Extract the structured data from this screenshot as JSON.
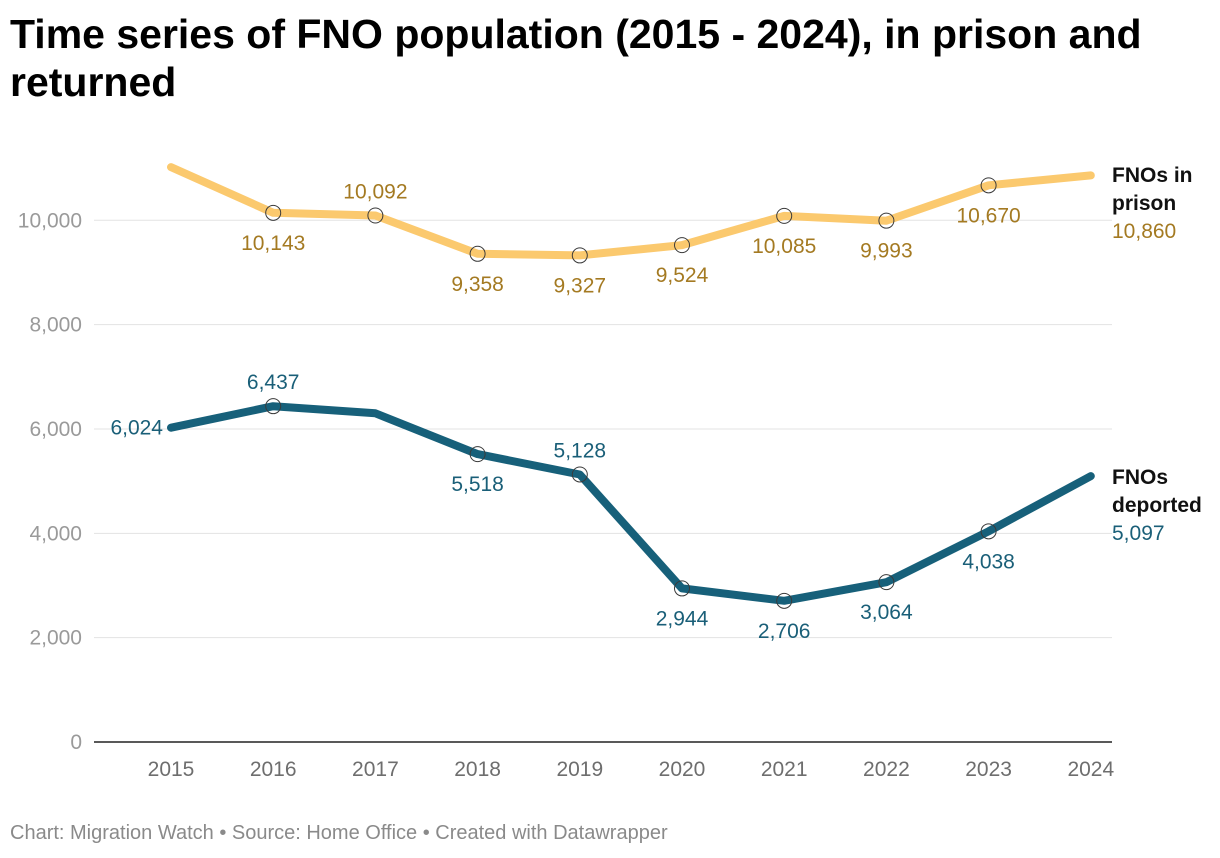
{
  "chart_data": {
    "type": "line",
    "title": "Time series of FNO population (2015 - 2024), in prison and returned",
    "xlabel": "",
    "ylabel": "",
    "x": [
      2015,
      2016,
      2017,
      2018,
      2019,
      2020,
      2021,
      2022,
      2023,
      2024
    ],
    "ylim": [
      0,
      11500
    ],
    "yticks": [
      0,
      2000,
      4000,
      6000,
      8000,
      10000
    ],
    "ytick_labels": [
      "0",
      "2,000",
      "4,000",
      "6,000",
      "8,000",
      "10,000"
    ],
    "grid": true,
    "series": [
      {
        "name": "FNOs in prison",
        "name_lines": [
          "FNOs in",
          "prison"
        ],
        "color": "#fbc96e",
        "label_color": "#a47a22",
        "values": [
          11020,
          10143,
          10092,
          9358,
          9327,
          9524,
          10085,
          9993,
          10670,
          10860
        ],
        "labels": [
          null,
          "10,143",
          "10,092",
          "9,358",
          "9,327",
          "9,524",
          "10,085",
          "9,993",
          "10,670",
          "10,860"
        ],
        "label_pos": [
          null,
          "below",
          "above",
          "below",
          "below",
          "below",
          "below",
          "below",
          "below",
          "end"
        ],
        "markers": [
          false,
          true,
          true,
          true,
          true,
          true,
          true,
          true,
          true,
          false
        ]
      },
      {
        "name": "FNOs deported",
        "name_lines": [
          "FNOs",
          "deported"
        ],
        "color": "#17607a",
        "label_color": "#1a5f78",
        "values": [
          6024,
          6437,
          6300,
          5518,
          5128,
          2944,
          2706,
          3064,
          4038,
          5097
        ],
        "labels": [
          "6,024",
          "6,437",
          null,
          "5,518",
          "5,128",
          "2,944",
          "2,706",
          "3,064",
          "4,038",
          "5,097"
        ],
        "label_pos": [
          "left",
          "above",
          null,
          "below",
          "above",
          "below",
          "below",
          "below",
          "below",
          "end"
        ],
        "markers": [
          false,
          true,
          false,
          true,
          true,
          true,
          true,
          true,
          true,
          false
        ]
      }
    ]
  },
  "footer": {
    "text": "Chart: Migration Watch • Source: Home Office • Created with Datawrapper"
  }
}
